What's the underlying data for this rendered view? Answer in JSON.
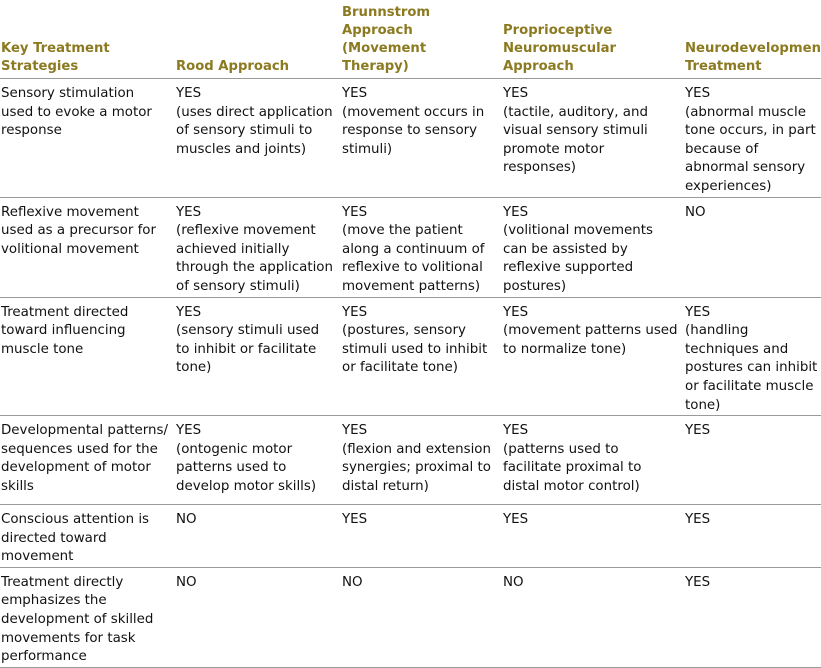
{
  "headers": [
    "Key Treatment Strategies",
    "Rood Approach",
    "Brunnstrom Approach (Movement Therapy)",
    "Proprioceptive Neuromuscular Approach",
    "Neurodevelopmental Treatment"
  ],
  "rows": [
    {
      "strategy": "Sensory stimulation used to evoke a motor response",
      "cells": [
        {
          "value": "YES",
          "detail": "(uses direct application of sensory stimuli to muscles and joints)"
        },
        {
          "value": "YES",
          "detail": "(movement occurs in response to sensory stimuli)"
        },
        {
          "value": "YES",
          "detail": "(tactile, auditory, and visual sensory stimuli promote motor responses)"
        },
        {
          "value": "YES",
          "detail": "(abnormal muscle tone occurs, in part because of abnormal sensory experiences)"
        }
      ]
    },
    {
      "strategy": "Reflexive movement used as a precursor for volitional movement",
      "cells": [
        {
          "value": "YES",
          "detail": "(reflexive movement achieved initially through the application of sensory stimuli)"
        },
        {
          "value": "YES",
          "detail": "(move the patient along a continuum of reflexive to volitional movement patterns)"
        },
        {
          "value": "YES",
          "detail": "(volitional movements can be assisted by reflexive supported postures)"
        },
        {
          "value": "NO",
          "detail": ""
        }
      ]
    },
    {
      "strategy": "Treatment directed toward influencing muscle tone",
      "cells": [
        {
          "value": "YES",
          "detail": "(sensory stimuli used to inhibit or facilitate tone)"
        },
        {
          "value": "YES",
          "detail": "(postures, sensory stimuli used to inhibit or facilitate tone)"
        },
        {
          "value": "YES",
          "detail": "(movement patterns used to normalize tone)"
        },
        {
          "value": "YES",
          "detail": "(handling techniques and postures can inhibit or facilitate muscle tone)"
        }
      ]
    },
    {
      "strategy": "Developmental patterns/ sequences used for the development of motor skills",
      "cells": [
        {
          "value": "YES",
          "detail": "(ontogenic motor patterns used to develop motor skills)"
        },
        {
          "value": "YES",
          "detail": "(flexion and extension synergies; proximal to distal return)"
        },
        {
          "value": "YES",
          "detail": "(patterns used to facilitate proximal to distal motor control)"
        },
        {
          "value": "YES",
          "detail": ""
        }
      ]
    },
    {
      "strategy": "Conscious attention is directed toward movement",
      "cells": [
        {
          "value": "NO",
          "detail": ""
        },
        {
          "value": "YES",
          "detail": ""
        },
        {
          "value": "YES",
          "detail": ""
        },
        {
          "value": "YES",
          "detail": ""
        }
      ]
    },
    {
      "strategy": "Treatment directly emphasizes the development of skilled movements for task performance",
      "cells": [
        {
          "value": "NO",
          "detail": ""
        },
        {
          "value": "NO",
          "detail": ""
        },
        {
          "value": "NO",
          "detail": ""
        },
        {
          "value": "YES",
          "detail": ""
        }
      ]
    }
  ]
}
